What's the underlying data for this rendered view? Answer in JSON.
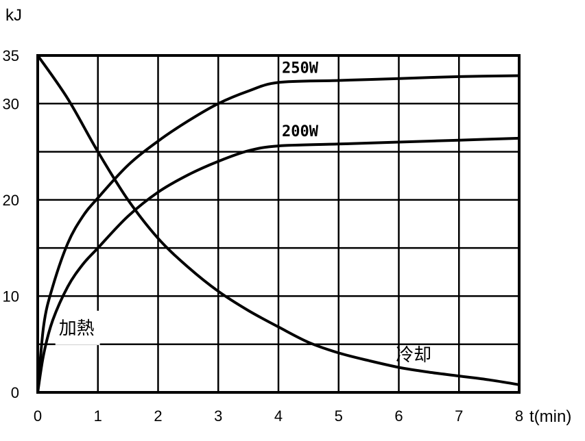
{
  "chart_data": {
    "type": "line",
    "title": "",
    "ylabel": "kJ",
    "xlabel": "t(min)",
    "xlim": [
      0,
      8
    ],
    "ylim": [
      0,
      35
    ],
    "x_ticks": [
      "0",
      "1",
      "2",
      "3",
      "4",
      "5",
      "6",
      "7",
      "8"
    ],
    "y_ticks": [
      {
        "value": 0,
        "label": "0"
      },
      {
        "value": 10,
        "label": "10"
      },
      {
        "value": 20,
        "label": "20"
      },
      {
        "value": 30,
        "label": "30"
      },
      {
        "value": 35,
        "label": "35"
      }
    ],
    "grid": true,
    "series": [
      {
        "name": "250W",
        "x": [
          0,
          0.1,
          0.25,
          0.5,
          0.75,
          1,
          1.5,
          2,
          2.5,
          3,
          3.5,
          4,
          5,
          6,
          7,
          8
        ],
        "values": [
          0,
          7,
          11,
          15.5,
          18.3,
          20.2,
          23.6,
          26.1,
          28.2,
          30,
          31.3,
          32.2,
          32.4,
          32.6,
          32.8,
          32.9
        ]
      },
      {
        "name": "200W",
        "x": [
          0,
          0.1,
          0.25,
          0.5,
          0.75,
          1,
          1.5,
          2,
          2.5,
          3,
          3.5,
          4,
          5,
          6,
          7,
          8
        ],
        "values": [
          0,
          4,
          7.5,
          11,
          13.3,
          15,
          18.3,
          20.8,
          22.6,
          24,
          25.1,
          25.6,
          25.8,
          26,
          26.2,
          26.4
        ]
      },
      {
        "name": "",
        "x": [
          0,
          0.5,
          1,
          1.5,
          2,
          2.5,
          3,
          3.5,
          4,
          4.5,
          5,
          5.5,
          6,
          6.5,
          7,
          7.5,
          8
        ],
        "values": [
          35,
          30.5,
          25,
          20,
          16,
          13,
          10.5,
          8.5,
          6.8,
          5.2,
          4.1,
          3.3,
          2.6,
          2.1,
          1.7,
          1.3,
          0.8
        ]
      }
    ],
    "annotations": [
      {
        "text": "加熱",
        "x": 0.35,
        "y": 6.7
      },
      {
        "text": "冷却",
        "x": 5.95,
        "y": 3.9
      }
    ]
  }
}
